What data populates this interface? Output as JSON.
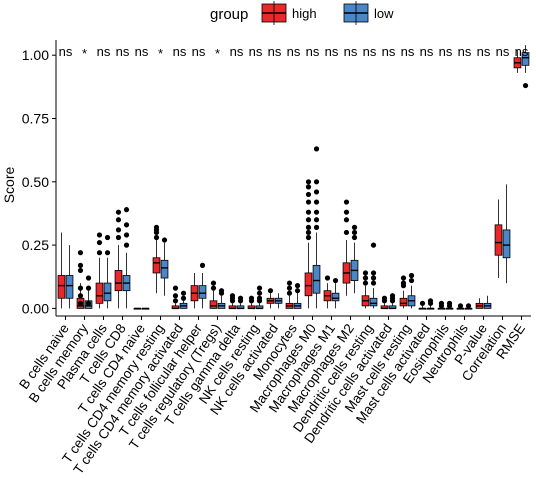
{
  "chart_data": {
    "type": "boxplot",
    "ylabel": "Score",
    "ylim": [
      -0.03,
      1.06
    ],
    "yticks": [
      0.0,
      0.25,
      0.5,
      0.75,
      1.0
    ],
    "ytick_labels": [
      "0.00",
      "0.25",
      "0.50",
      "0.75",
      "1.00"
    ],
    "legend": {
      "title": "group",
      "position": "top",
      "entries": [
        {
          "name": "high",
          "color": "#E8282A"
        },
        {
          "name": "low",
          "color": "#4A86C8"
        }
      ]
    },
    "categories": [
      "B cells naive",
      "B cells memory",
      "Plasma cells",
      "T cells CD8",
      "T cells CD4 naive",
      "T cells CD4 memory resting",
      "T cells CD4 memory activated",
      "T cells follicular helper",
      "T cells regulatory (Tregs)",
      "T cells gamma delta",
      "NK cells resting",
      "NK cells activated",
      "Monocytes",
      "Macrophages M0",
      "Macrophages M1",
      "Macrophages M2",
      "Dendritic cells resting",
      "Dendritic cells activated",
      "Mast cells resting",
      "Mast cells activated",
      "Eosinophils",
      "Neutrophils",
      "P-value",
      "Correlation",
      "RMSE"
    ],
    "significance": [
      "ns",
      "*",
      "ns",
      "ns",
      "ns",
      "*",
      "ns",
      "ns",
      "*",
      "ns",
      "ns",
      "ns",
      "ns",
      "ns",
      "ns",
      "ns",
      "ns",
      "ns",
      "ns",
      "ns",
      "ns",
      "ns",
      "ns",
      "ns",
      "ns"
    ],
    "series": [
      {
        "name": "high",
        "color": "#E8282A",
        "boxes": [
          {
            "min": 0.0,
            "q1": 0.04,
            "median": 0.09,
            "q3": 0.13,
            "max": 0.3,
            "outliers": []
          },
          {
            "min": 0.0,
            "q1": 0.0,
            "median": 0.01,
            "q3": 0.04,
            "max": 0.1,
            "outliers": [
              0.15,
              0.17,
              0.22,
              0.02,
              0.05,
              0.08
            ]
          },
          {
            "min": 0.0,
            "q1": 0.02,
            "median": 0.05,
            "q3": 0.1,
            "max": 0.2,
            "outliers": [
              0.22,
              0.26,
              0.29
            ]
          },
          {
            "min": 0.0,
            "q1": 0.07,
            "median": 0.1,
            "q3": 0.15,
            "max": 0.25,
            "outliers": [
              0.28,
              0.31,
              0.35,
              0.38
            ]
          },
          {
            "min": 0.0,
            "q1": 0.0,
            "median": 0.0,
            "q3": 0.0,
            "max": 0.0,
            "outliers": []
          },
          {
            "min": 0.06,
            "q1": 0.14,
            "median": 0.18,
            "q3": 0.2,
            "max": 0.27,
            "outliers": [
              0.28,
              0.3,
              0.31,
              0.32
            ]
          },
          {
            "min": 0.0,
            "q1": 0.0,
            "median": 0.0,
            "q3": 0.01,
            "max": 0.02,
            "outliers": [
              0.03,
              0.05,
              0.08
            ]
          },
          {
            "min": 0.0,
            "q1": 0.03,
            "median": 0.06,
            "q3": 0.09,
            "max": 0.14,
            "outliers": []
          },
          {
            "min": 0.0,
            "q1": 0.0,
            "median": 0.01,
            "q3": 0.03,
            "max": 0.07,
            "outliers": [
              0.08,
              0.1
            ]
          },
          {
            "min": 0.0,
            "q1": 0.0,
            "median": 0.0,
            "q3": 0.01,
            "max": 0.02,
            "outliers": [
              0.03,
              0.04,
              0.05
            ]
          },
          {
            "min": 0.0,
            "q1": 0.0,
            "median": 0.0,
            "q3": 0.01,
            "max": 0.02,
            "outliers": [
              0.03,
              0.04
            ]
          },
          {
            "min": 0.0,
            "q1": 0.02,
            "median": 0.03,
            "q3": 0.04,
            "max": 0.06,
            "outliers": [
              0.07
            ]
          },
          {
            "min": 0.0,
            "q1": 0.0,
            "median": 0.01,
            "q3": 0.02,
            "max": 0.05,
            "outliers": [
              0.06,
              0.08,
              0.1
            ]
          },
          {
            "min": 0.0,
            "q1": 0.05,
            "median": 0.09,
            "q3": 0.14,
            "max": 0.26,
            "outliers": [
              0.28,
              0.3,
              0.32,
              0.35,
              0.38,
              0.42,
              0.45,
              0.48,
              0.5
            ]
          },
          {
            "min": 0.0,
            "q1": 0.03,
            "median": 0.05,
            "q3": 0.07,
            "max": 0.1,
            "outliers": [
              0.12
            ]
          },
          {
            "min": 0.05,
            "q1": 0.1,
            "median": 0.14,
            "q3": 0.18,
            "max": 0.27,
            "outliers": [
              0.3,
              0.35,
              0.38,
              0.42
            ]
          },
          {
            "min": 0.0,
            "q1": 0.01,
            "median": 0.03,
            "q3": 0.05,
            "max": 0.09,
            "outliers": [
              0.1,
              0.12,
              0.14
            ]
          },
          {
            "min": 0.0,
            "q1": 0.0,
            "median": 0.0,
            "q3": 0.01,
            "max": 0.02,
            "outliers": [
              0.03,
              0.04
            ]
          },
          {
            "min": 0.0,
            "q1": 0.01,
            "median": 0.02,
            "q3": 0.04,
            "max": 0.07,
            "outliers": [
              0.09,
              0.1,
              0.12
            ]
          },
          {
            "min": 0.0,
            "q1": 0.0,
            "median": 0.0,
            "q3": 0.0,
            "max": 0.01,
            "outliers": [
              0.02
            ]
          },
          {
            "min": 0.0,
            "q1": 0.0,
            "median": 0.0,
            "q3": 0.0,
            "max": 0.0,
            "outliers": [
              0.01,
              0.02
            ]
          },
          {
            "min": 0.0,
            "q1": 0.0,
            "median": 0.0,
            "q3": 0.0,
            "max": 0.0,
            "outliers": [
              0.01
            ]
          },
          {
            "min": 0.0,
            "q1": 0.0,
            "median": 0.01,
            "q3": 0.02,
            "max": 0.04,
            "outliers": []
          },
          {
            "min": 0.12,
            "q1": 0.21,
            "median": 0.26,
            "q3": 0.33,
            "max": 0.43,
            "outliers": []
          },
          {
            "min": 0.93,
            "q1": 0.95,
            "median": 0.97,
            "q3": 0.99,
            "max": 1.02,
            "outliers": []
          }
        ]
      },
      {
        "name": "low",
        "color": "#4A86C8",
        "boxes": [
          {
            "min": 0.0,
            "q1": 0.04,
            "median": 0.09,
            "q3": 0.13,
            "max": 0.25,
            "outliers": []
          },
          {
            "min": 0.0,
            "q1": 0.0,
            "median": 0.01,
            "q3": 0.03,
            "max": 0.07,
            "outliers": [
              0.08,
              0.12,
              0.02
            ]
          },
          {
            "min": 0.0,
            "q1": 0.03,
            "median": 0.06,
            "q3": 0.1,
            "max": 0.2,
            "outliers": [
              0.22,
              0.28
            ]
          },
          {
            "min": 0.0,
            "q1": 0.07,
            "median": 0.1,
            "q3": 0.13,
            "max": 0.22,
            "outliers": [
              0.25,
              0.29,
              0.33,
              0.39
            ]
          },
          {
            "min": 0.0,
            "q1": 0.0,
            "median": 0.0,
            "q3": 0.0,
            "max": 0.0,
            "outliers": []
          },
          {
            "min": 0.05,
            "q1": 0.12,
            "median": 0.16,
            "q3": 0.19,
            "max": 0.26,
            "outliers": [
              0.27
            ]
          },
          {
            "min": 0.0,
            "q1": 0.0,
            "median": 0.01,
            "q3": 0.02,
            "max": 0.03,
            "outliers": [
              0.04,
              0.06
            ]
          },
          {
            "min": 0.0,
            "q1": 0.04,
            "median": 0.06,
            "q3": 0.09,
            "max": 0.14,
            "outliers": [
              0.17
            ]
          },
          {
            "min": 0.0,
            "q1": 0.0,
            "median": 0.01,
            "q3": 0.02,
            "max": 0.05,
            "outliers": [
              0.06,
              0.07
            ]
          },
          {
            "min": 0.0,
            "q1": 0.0,
            "median": 0.0,
            "q3": 0.01,
            "max": 0.02,
            "outliers": [
              0.03,
              0.04
            ]
          },
          {
            "min": 0.0,
            "q1": 0.0,
            "median": 0.0,
            "q3": 0.01,
            "max": 0.02,
            "outliers": [
              0.03,
              0.04,
              0.06,
              0.08
            ]
          },
          {
            "min": 0.0,
            "q1": 0.02,
            "median": 0.03,
            "q3": 0.04,
            "max": 0.06,
            "outliers": []
          },
          {
            "min": 0.0,
            "q1": 0.0,
            "median": 0.01,
            "q3": 0.02,
            "max": 0.06,
            "outliers": [
              0.07,
              0.09
            ]
          },
          {
            "min": 0.0,
            "q1": 0.06,
            "median": 0.11,
            "q3": 0.17,
            "max": 0.3,
            "outliers": [
              0.32,
              0.35,
              0.38,
              0.42,
              0.46,
              0.5,
              0.63
            ]
          },
          {
            "min": 0.0,
            "q1": 0.03,
            "median": 0.04,
            "q3": 0.06,
            "max": 0.1,
            "outliers": [
              0.11
            ]
          },
          {
            "min": 0.06,
            "q1": 0.11,
            "median": 0.15,
            "q3": 0.19,
            "max": 0.26,
            "outliers": [
              0.28,
              0.3,
              0.32
            ]
          },
          {
            "min": 0.0,
            "q1": 0.01,
            "median": 0.02,
            "q3": 0.04,
            "max": 0.08,
            "outliers": [
              0.1,
              0.12,
              0.14,
              0.25
            ]
          },
          {
            "min": 0.0,
            "q1": 0.0,
            "median": 0.0,
            "q3": 0.01,
            "max": 0.02,
            "outliers": [
              0.03,
              0.04,
              0.05
            ]
          },
          {
            "min": 0.0,
            "q1": 0.01,
            "median": 0.03,
            "q3": 0.05,
            "max": 0.09,
            "outliers": [
              0.11,
              0.13
            ]
          },
          {
            "min": 0.0,
            "q1": 0.0,
            "median": 0.0,
            "q3": 0.0,
            "max": 0.01,
            "outliers": [
              0.02,
              0.03
            ]
          },
          {
            "min": 0.0,
            "q1": 0.0,
            "median": 0.0,
            "q3": 0.0,
            "max": 0.0,
            "outliers": [
              0.01,
              0.02
            ]
          },
          {
            "min": 0.0,
            "q1": 0.0,
            "median": 0.0,
            "q3": 0.0,
            "max": 0.0,
            "outliers": [
              0.01
            ]
          },
          {
            "min": 0.0,
            "q1": 0.0,
            "median": 0.01,
            "q3": 0.02,
            "max": 0.05,
            "outliers": []
          },
          {
            "min": 0.1,
            "q1": 0.2,
            "median": 0.25,
            "q3": 0.31,
            "max": 0.49,
            "outliers": []
          },
          {
            "min": 0.93,
            "q1": 0.96,
            "median": 0.99,
            "q3": 1.01,
            "max": 1.04,
            "outliers": [
              0.88
            ]
          }
        ]
      }
    ]
  }
}
